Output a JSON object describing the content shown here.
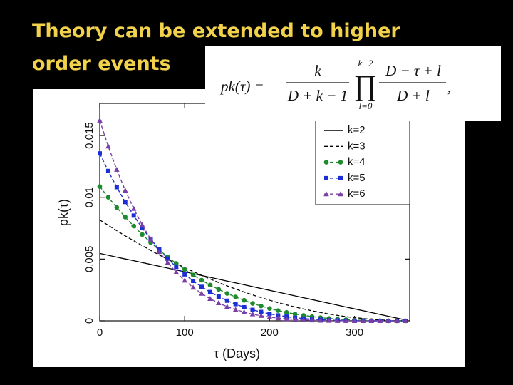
{
  "slide": {
    "title": [
      "Theory can be extended to higher",
      "order events"
    ]
  },
  "formula": {
    "lhs": "pk(τ) =",
    "num1": "k",
    "den1": "D + k − 1",
    "prod": "∏",
    "prod_upper": "k−2",
    "prod_lower": "l=0",
    "num2": "D − τ + l",
    "den2": "D + l",
    "tail": ","
  },
  "chart_data": {
    "type": "line",
    "x_label": "τ (Days)",
    "y_label": "pk(τ)",
    "xlim": [
      0,
      365
    ],
    "xticks": [
      0,
      100,
      200,
      300
    ],
    "ylim": [
      0,
      0.0176
    ],
    "yticks": [
      0,
      0.005,
      0.01,
      0.015
    ],
    "legend": "upper right",
    "x": [
      0,
      10,
      20,
      30,
      40,
      50,
      60,
      70,
      80,
      90,
      100,
      110,
      120,
      130,
      140,
      150,
      160,
      170,
      180,
      190,
      200,
      210,
      220,
      230,
      240,
      250,
      260,
      270,
      280,
      290,
      300,
      310,
      320,
      330,
      340,
      350,
      360
    ],
    "series": [
      {
        "name": "k=2",
        "color": "#000000",
        "dash": "none",
        "marker": "none",
        "values": [
          0.00546,
          0.00531,
          0.00516,
          0.00501,
          0.00487,
          0.00472,
          0.00457,
          0.00442,
          0.00427,
          0.00412,
          0.00397,
          0.00382,
          0.00367,
          0.00352,
          0.00337,
          0.00322,
          0.00307,
          0.00292,
          0.00277,
          0.00262,
          0.00247,
          0.00232,
          0.00217,
          0.00202,
          0.00187,
          0.00172,
          0.00157,
          0.00142,
          0.00127,
          0.00112,
          0.00097,
          0.00082,
          0.00067,
          0.00052,
          0.00037,
          0.00022,
          7e-05
        ]
      },
      {
        "name": "k=3",
        "color": "#000000",
        "dash": "5,3",
        "marker": "none",
        "values": [
          0.00817,
          0.00773,
          0.0073,
          0.00688,
          0.00648,
          0.00609,
          0.0057,
          0.00534,
          0.00498,
          0.00464,
          0.00431,
          0.00399,
          0.00368,
          0.00339,
          0.0031,
          0.00283,
          0.00258,
          0.00233,
          0.0021,
          0.00188,
          0.00167,
          0.00147,
          0.00129,
          0.00112,
          0.00096,
          0.00081,
          0.00068,
          0.00055,
          0.00044,
          0.00034,
          0.00026,
          0.00019,
          0.00012,
          8e-05,
          4e-05,
          1e-05,
          0
        ]
      },
      {
        "name": "k=4",
        "color": "#1e8a2e",
        "dash": "5,3",
        "marker": "circle",
        "values": [
          0.01087,
          0.01,
          0.00918,
          0.0084,
          0.00767,
          0.00699,
          0.00634,
          0.00574,
          0.00517,
          0.00465,
          0.00416,
          0.00371,
          0.00329,
          0.0029,
          0.00255,
          0.00222,
          0.00193,
          0.00166,
          0.00141,
          0.0012,
          0.001,
          0.00083,
          0.00068,
          0.00055,
          0.00044,
          0.00034,
          0.00026,
          0.00019,
          0.00014,
          9e-05,
          6e-05,
          4e-05,
          2e-05,
          1e-05,
          0,
          0,
          0
        ]
      },
      {
        "name": "k=5",
        "color": "#1c2fd6",
        "dash": "5,3",
        "marker": "square",
        "values": [
          0.01355,
          0.01213,
          0.01082,
          0.00962,
          0.00852,
          0.00752,
          0.00661,
          0.00578,
          0.00504,
          0.00437,
          0.00376,
          0.00323,
          0.00275,
          0.00233,
          0.00196,
          0.00163,
          0.00135,
          0.0011,
          0.00089,
          0.00072,
          0.00057,
          0.00044,
          0.00034,
          0.00025,
          0.00019,
          0.00013,
          9e-05,
          6e-05,
          4e-05,
          2e-05,
          1e-05,
          1e-05,
          0,
          0,
          0,
          0,
          0
        ]
      },
      {
        "name": "k=6",
        "color": "#7a3fa6",
        "dash": "5,3",
        "marker": "triangle",
        "values": [
          0.01622,
          0.01412,
          0.01224,
          0.01056,
          0.00908,
          0.00776,
          0.00661,
          0.00559,
          0.00471,
          0.00394,
          0.00327,
          0.0027,
          0.00221,
          0.00179,
          0.00144,
          0.00115,
          0.00091,
          0.00071,
          0.00054,
          0.00041,
          0.00031,
          0.00022,
          0.00016,
          0.00011,
          8e-05,
          5e-05,
          3e-05,
          2e-05,
          1e-05,
          1e-05,
          0,
          0,
          0,
          0,
          0,
          0,
          0
        ]
      }
    ]
  }
}
